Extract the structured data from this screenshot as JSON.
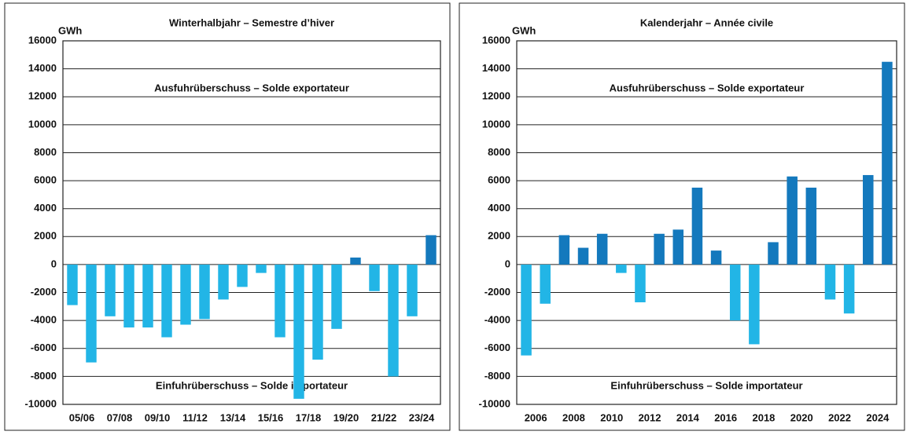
{
  "chart_data": [
    {
      "type": "bar",
      "title": "Winterhalbjahr – Semestre d’hiver",
      "unit": "GWh",
      "annotations": [
        "Ausfuhrüberschuss – Solde exportateur",
        "Einfuhrüberschuss – Solde importateur"
      ],
      "categories": [
        null,
        "05/06",
        null,
        "07/08",
        null,
        "09/10",
        null,
        "11/12",
        null,
        "13/14",
        null,
        "15/16",
        null,
        "17/18",
        null,
        "19/20",
        null,
        "21/22",
        null,
        "23/24"
      ],
      "values": [
        -2900,
        -7000,
        -3700,
        -4500,
        -4500,
        -5200,
        -4300,
        -3900,
        -2500,
        -1600,
        -600,
        -5200,
        -9600,
        -6800,
        -4600,
        500,
        -1900,
        -8000,
        -3700,
        2100
      ],
      "positive_color": "#1479bd",
      "negative_color": "#22b5e6",
      "ylim": [
        -10000,
        16000
      ],
      "yticks": [
        -10000,
        -8000,
        -6000,
        -4000,
        -2000,
        0,
        2000,
        4000,
        6000,
        8000,
        10000,
        12000,
        14000,
        16000
      ],
      "grid": true
    },
    {
      "type": "bar",
      "title": "Kalenderjahr – Année civile",
      "unit": "GWh",
      "annotations": [
        "Ausfuhrüberschuss – Solde exportateur",
        "Einfuhrüberschuss – Solde importateur"
      ],
      "categories": [
        null,
        "2006",
        null,
        "2008",
        null,
        "2010",
        null,
        "2012",
        null,
        "2014",
        null,
        "2016",
        null,
        "2018",
        null,
        "2020",
        null,
        "2022",
        null,
        "2024"
      ],
      "values": [
        -6500,
        -2800,
        2100,
        1200,
        2200,
        -600,
        -2700,
        2200,
        2500,
        5500,
        1000,
        -4000,
        -5700,
        1600,
        6300,
        5500,
        -2500,
        -3500,
        6400,
        14500
      ],
      "positive_color": "#1479bd",
      "negative_color": "#22b5e6",
      "ylim": [
        -10000,
        16000
      ],
      "yticks": [
        -10000,
        -8000,
        -6000,
        -4000,
        -2000,
        0,
        2000,
        4000,
        6000,
        8000,
        10000,
        12000,
        14000,
        16000
      ],
      "grid": true
    }
  ]
}
